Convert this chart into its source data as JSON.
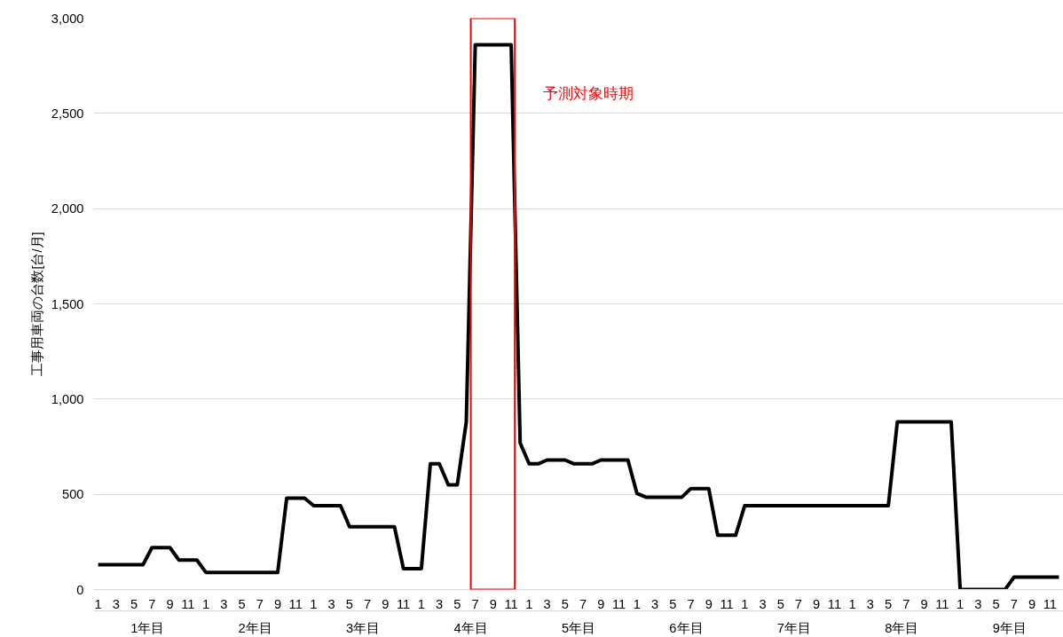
{
  "chart_data": {
    "type": "line",
    "ylabel": "工事用車両の台数[台/月]",
    "categories": [
      "1",
      null,
      "3",
      null,
      "5",
      null,
      "7",
      null,
      "9",
      null,
      "11",
      null,
      "1",
      null,
      "3",
      null,
      "5",
      null,
      "7",
      null,
      "9",
      null,
      "11",
      null,
      "1",
      null,
      "3",
      null,
      "5",
      null,
      "7",
      null,
      "9",
      null,
      "11",
      null,
      "1",
      null,
      "3",
      null,
      "5",
      null,
      "7",
      null,
      "9",
      null,
      "11",
      null,
      "1",
      null,
      "3",
      null,
      "5",
      null,
      "7",
      null,
      "9",
      null,
      "11",
      null,
      "1",
      null,
      "3",
      null,
      "5",
      null,
      "7",
      null,
      "9",
      null,
      "11",
      null,
      "1",
      null,
      "3",
      null,
      "5",
      null,
      "7",
      null,
      "9",
      null,
      "11",
      null,
      "1",
      null,
      "3",
      null,
      "5",
      null,
      "7",
      null,
      "9",
      null,
      "11",
      null,
      "1",
      null,
      "3",
      null,
      "5",
      null,
      "7",
      null,
      "9",
      null,
      "11",
      null
    ],
    "series": [
      {
        "color": "#000000",
        "values": [
          130,
          130,
          130,
          130,
          130,
          130,
          220,
          220,
          220,
          155,
          155,
          155,
          90,
          90,
          90,
          90,
          90,
          90,
          90,
          90,
          90,
          480,
          480,
          480,
          440,
          440,
          440,
          440,
          330,
          330,
          330,
          330,
          330,
          330,
          110,
          110,
          110,
          660,
          660,
          550,
          550,
          880,
          2860,
          2860,
          2860,
          2860,
          2860,
          770,
          660,
          660,
          680,
          680,
          680,
          660,
          660,
          660,
          680,
          680,
          680,
          680,
          505,
          485,
          485,
          485,
          485,
          485,
          530,
          530,
          530,
          285,
          285,
          285,
          440,
          440,
          440,
          440,
          440,
          440,
          440,
          440,
          440,
          440,
          440,
          440,
          440,
          440,
          440,
          440,
          440,
          880,
          880,
          880,
          880,
          880,
          880,
          880,
          0,
          0,
          0,
          0,
          0,
          0,
          65,
          65,
          65,
          65,
          65,
          65
        ]
      }
    ],
    "ylim": [
      0,
      3000
    ],
    "yticks": [
      0,
      500,
      {
        "value": 1000,
        "label": "1,000"
      },
      {
        "value": 1500,
        "label": "1,500"
      },
      {
        "value": 2000,
        "label": "2,000"
      },
      {
        "value": 2500,
        "label": "2,500"
      },
      {
        "value": 3000,
        "label": "3,000"
      }
    ],
    "grid": "y",
    "line_style": "solid",
    "annotations": [
      "予測対象時期",
      "1年目",
      "2年目",
      "3年目",
      "4年目",
      "5年目",
      "6年目",
      "7年目",
      "8年目",
      "9年目"
    ]
  }
}
